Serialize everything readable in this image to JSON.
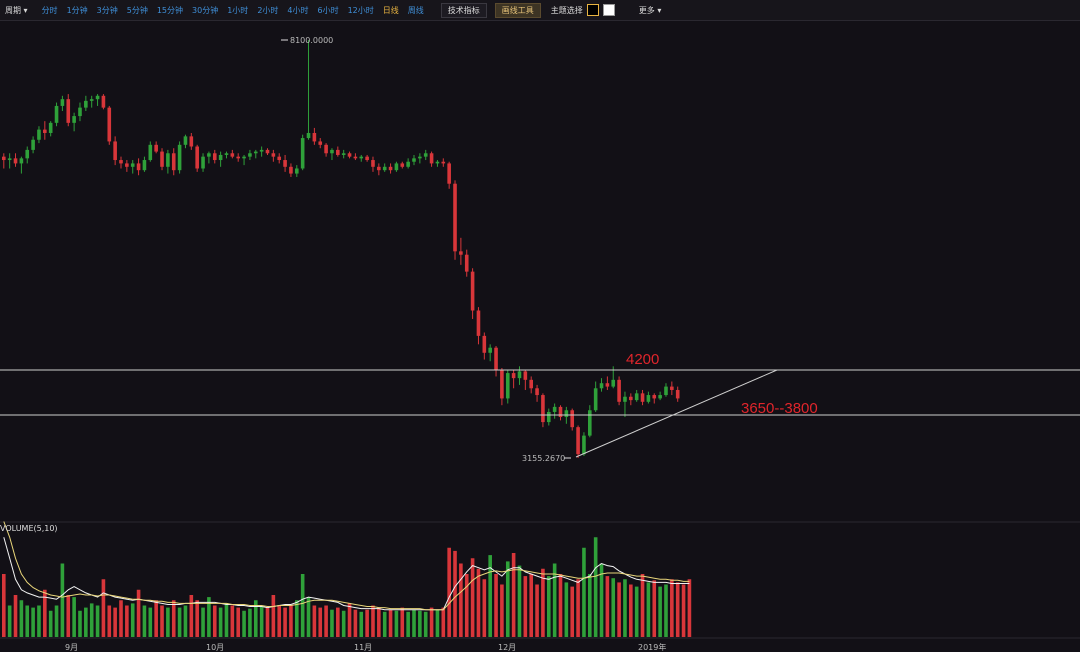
{
  "toolbar": {
    "period_label": "周期",
    "intervals": [
      "分时",
      "1分钟",
      "3分钟",
      "5分钟",
      "15分钟",
      "30分钟",
      "1小时",
      "2小时",
      "4小时",
      "6小时",
      "12小时",
      "日线",
      "周线"
    ],
    "active_interval": "日线",
    "tech_indicator": "技术指标",
    "draw_tool": "画线工具",
    "theme_label": "主题选择",
    "more_label": "更多"
  },
  "annotations": {
    "high_label": "8100.0000",
    "low_label": "3155.2670",
    "resistance_label": "4200",
    "support_label": "3650--3800"
  },
  "volume": {
    "title": "VOLUME(5,10)"
  },
  "colors": {
    "up": "#2fa13a",
    "down": "#d8363a",
    "ma5": "#f2f2f2",
    "ma10": "#e9d67a",
    "annotation": "#e0252b",
    "line": "#cfcfcf"
  },
  "chart_data": {
    "type": "candlestick",
    "x_tick_labels": [
      "9月",
      "10月",
      "11月",
      "12月",
      "2019年"
    ],
    "ylim": [
      3000,
      8300
    ],
    "ohlc": [
      [
        6720,
        6760,
        6580,
        6680
      ],
      [
        6680,
        6760,
        6580,
        6700
      ],
      [
        6700,
        6760,
        6600,
        6640
      ],
      [
        6640,
        6720,
        6520,
        6700
      ],
      [
        6700,
        6840,
        6640,
        6800
      ],
      [
        6800,
        6960,
        6760,
        6920
      ],
      [
        6920,
        7080,
        6880,
        7040
      ],
      [
        7040,
        7140,
        6920,
        7000
      ],
      [
        7000,
        7140,
        6960,
        7120
      ],
      [
        7120,
        7360,
        7080,
        7320
      ],
      [
        7320,
        7440,
        7260,
        7400
      ],
      [
        7400,
        7460,
        7080,
        7120
      ],
      [
        7120,
        7240,
        7020,
        7200
      ],
      [
        7200,
        7360,
        7140,
        7300
      ],
      [
        7300,
        7440,
        7260,
        7380
      ],
      [
        7380,
        7440,
        7300,
        7400
      ],
      [
        7400,
        7460,
        7320,
        7440
      ],
      [
        7440,
        7460,
        7280,
        7300
      ],
      [
        7300,
        7320,
        6860,
        6900
      ],
      [
        6900,
        6960,
        6620,
        6680
      ],
      [
        6680,
        6720,
        6580,
        6640
      ],
      [
        6640,
        6680,
        6540,
        6600
      ],
      [
        6600,
        6680,
        6520,
        6640
      ],
      [
        6640,
        6700,
        6500,
        6560
      ],
      [
        6560,
        6720,
        6540,
        6680
      ],
      [
        6680,
        6900,
        6660,
        6860
      ],
      [
        6860,
        6900,
        6760,
        6780
      ],
      [
        6780,
        6820,
        6560,
        6600
      ],
      [
        6600,
        6800,
        6520,
        6760
      ],
      [
        6760,
        6820,
        6500,
        6560
      ],
      [
        6560,
        6900,
        6520,
        6860
      ],
      [
        6860,
        6980,
        6820,
        6960
      ],
      [
        6960,
        7000,
        6800,
        6840
      ],
      [
        6840,
        6860,
        6540,
        6580
      ],
      [
        6580,
        6760,
        6540,
        6720
      ],
      [
        6720,
        6780,
        6640,
        6760
      ],
      [
        6760,
        6800,
        6640,
        6680
      ],
      [
        6680,
        6780,
        6600,
        6740
      ],
      [
        6740,
        6780,
        6700,
        6760
      ],
      [
        6760,
        6800,
        6700,
        6720
      ],
      [
        6720,
        6760,
        6660,
        6700
      ],
      [
        6700,
        6740,
        6620,
        6720
      ],
      [
        6720,
        6800,
        6680,
        6760
      ],
      [
        6760,
        6800,
        6700,
        6780
      ],
      [
        6780,
        6840,
        6720,
        6800
      ],
      [
        6800,
        6820,
        6740,
        6760
      ],
      [
        6760,
        6800,
        6660,
        6720
      ],
      [
        6720,
        6760,
        6640,
        6680
      ],
      [
        6680,
        6740,
        6540,
        6600
      ],
      [
        6600,
        6640,
        6480,
        6520
      ],
      [
        6520,
        6620,
        6480,
        6580
      ],
      [
        6580,
        6980,
        6560,
        6940
      ],
      [
        6940,
        8100,
        6920,
        7000
      ],
      [
        7000,
        7060,
        6860,
        6900
      ],
      [
        6900,
        6940,
        6820,
        6860
      ],
      [
        6860,
        6880,
        6720,
        6760
      ],
      [
        6760,
        6820,
        6680,
        6800
      ],
      [
        6800,
        6840,
        6720,
        6740
      ],
      [
        6740,
        6800,
        6700,
        6760
      ],
      [
        6760,
        6780,
        6700,
        6720
      ],
      [
        6720,
        6760,
        6680,
        6700
      ],
      [
        6700,
        6740,
        6660,
        6720
      ],
      [
        6720,
        6740,
        6660,
        6680
      ],
      [
        6680,
        6720,
        6540,
        6600
      ],
      [
        6600,
        6640,
        6500,
        6560
      ],
      [
        6560,
        6640,
        6540,
        6600
      ],
      [
        6600,
        6640,
        6520,
        6560
      ],
      [
        6560,
        6660,
        6540,
        6640
      ],
      [
        6640,
        6660,
        6580,
        6600
      ],
      [
        6600,
        6700,
        6580,
        6660
      ],
      [
        6660,
        6740,
        6620,
        6700
      ],
      [
        6700,
        6760,
        6640,
        6720
      ],
      [
        6720,
        6800,
        6680,
        6760
      ],
      [
        6760,
        6780,
        6600,
        6640
      ],
      [
        6640,
        6680,
        6600,
        6660
      ],
      [
        6660,
        6700,
        6600,
        6640
      ],
      [
        6640,
        6660,
        6340,
        6400
      ],
      [
        6400,
        6440,
        5500,
        5600
      ],
      [
        5600,
        5760,
        5440,
        5560
      ],
      [
        5560,
        5620,
        5300,
        5360
      ],
      [
        5360,
        5400,
        4800,
        4900
      ],
      [
        4900,
        4940,
        4500,
        4600
      ],
      [
        4600,
        4640,
        4320,
        4400
      ],
      [
        4400,
        4500,
        4300,
        4460
      ],
      [
        4460,
        4480,
        4120,
        4200
      ],
      [
        4200,
        4220,
        3780,
        3860
      ],
      [
        3860,
        4200,
        3800,
        4160
      ],
      [
        4160,
        4200,
        3980,
        4100
      ],
      [
        4100,
        4240,
        4020,
        4180
      ],
      [
        4180,
        4200,
        3960,
        4080
      ],
      [
        4080,
        4120,
        3920,
        3980
      ],
      [
        3980,
        4020,
        3820,
        3900
      ],
      [
        3900,
        3920,
        3520,
        3580
      ],
      [
        3580,
        3740,
        3540,
        3700
      ],
      [
        3700,
        3800,
        3620,
        3760
      ],
      [
        3760,
        3780,
        3600,
        3640
      ],
      [
        3640,
        3760,
        3560,
        3720
      ],
      [
        3720,
        3740,
        3480,
        3520
      ],
      [
        3520,
        3540,
        3155.267,
        3200
      ],
      [
        3200,
        3460,
        3180,
        3420
      ],
      [
        3420,
        3780,
        3400,
        3720
      ],
      [
        3720,
        4060,
        3700,
        3980
      ],
      [
        3980,
        4100,
        3940,
        4040
      ],
      [
        4040,
        4120,
        3960,
        4000
      ],
      [
        4000,
        4240,
        3980,
        4080
      ],
      [
        4080,
        4120,
        3780,
        3820
      ],
      [
        3820,
        3940,
        3640,
        3880
      ],
      [
        3880,
        3920,
        3780,
        3840
      ],
      [
        3840,
        3960,
        3820,
        3920
      ],
      [
        3920,
        3960,
        3780,
        3820
      ],
      [
        3820,
        3940,
        3800,
        3900
      ],
      [
        3900,
        3920,
        3800,
        3860
      ],
      [
        3860,
        3940,
        3840,
        3900
      ],
      [
        3900,
        4040,
        3880,
        4000
      ],
      [
        4000,
        4060,
        3900,
        3960
      ],
      [
        3960,
        4000,
        3820,
        3860
      ]
    ],
    "volume": [
      60,
      30,
      40,
      35,
      30,
      28,
      30,
      45,
      25,
      30,
      70,
      40,
      38,
      25,
      28,
      32,
      30,
      55,
      30,
      28,
      35,
      30,
      32,
      45,
      30,
      28,
      35,
      30,
      28,
      35,
      28,
      30,
      40,
      35,
      28,
      38,
      30,
      28,
      32,
      30,
      28,
      25,
      27,
      35,
      30,
      28,
      40,
      30,
      28,
      30,
      35,
      60,
      38,
      30,
      28,
      30,
      26,
      28,
      25,
      32,
      26,
      24,
      26,
      30,
      28,
      24,
      26,
      25,
      28,
      24,
      26,
      25,
      24,
      28,
      26,
      28,
      85,
      82,
      70,
      60,
      75,
      65,
      55,
      78,
      60,
      50,
      72,
      80,
      68,
      58,
      60,
      50,
      65,
      58,
      70,
      60,
      52,
      48,
      55,
      85,
      60,
      95,
      70,
      58,
      56,
      52,
      55,
      50,
      48,
      60,
      52,
      54,
      48,
      50,
      55,
      52,
      50,
      55
    ],
    "ma5": [
      95,
      75,
      55,
      45,
      42,
      40,
      38,
      38,
      37,
      36,
      40,
      45,
      48,
      45,
      42,
      40,
      38,
      42,
      40,
      38,
      37,
      36,
      35,
      36,
      35,
      34,
      33,
      32,
      31,
      31,
      31,
      32,
      32,
      33,
      33,
      33,
      33,
      32,
      31,
      31,
      30,
      30,
      29,
      29,
      29,
      28,
      29,
      30,
      31,
      31,
      33,
      36,
      38,
      37,
      36,
      35,
      34,
      33,
      30,
      29,
      28,
      27,
      27,
      27,
      27,
      26,
      26,
      26,
      26,
      26,
      26,
      26,
      26,
      26,
      26,
      26,
      38,
      48,
      55,
      62,
      68,
      66,
      64,
      66,
      62,
      58,
      64,
      66,
      66,
      62,
      60,
      58,
      56,
      55,
      57,
      58,
      56,
      54,
      52,
      56,
      58,
      66,
      70,
      68,
      67,
      63,
      60,
      57,
      55,
      54,
      53,
      52,
      52,
      52,
      51,
      51,
      51,
      51
    ],
    "ma10": [
      110,
      95,
      75,
      60,
      52,
      47,
      44,
      42,
      40,
      39,
      38,
      39,
      40,
      41,
      40,
      40,
      39,
      40,
      40,
      39,
      38,
      37,
      36,
      36,
      35,
      35,
      34,
      34,
      33,
      33,
      32,
      32,
      32,
      32,
      32,
      32,
      32,
      32,
      32,
      31,
      31,
      31,
      30,
      30,
      30,
      29,
      29,
      30,
      30,
      30,
      31,
      32,
      34,
      35,
      35,
      35,
      35,
      34,
      33,
      32,
      31,
      30,
      29,
      29,
      28,
      28,
      27,
      27,
      27,
      27,
      27,
      27,
      26,
      26,
      26,
      26,
      32,
      38,
      43,
      48,
      54,
      58,
      60,
      62,
      63,
      62,
      63,
      64,
      64,
      63,
      62,
      61,
      60,
      60,
      60,
      59,
      58,
      57,
      56,
      56,
      57,
      58,
      60,
      61,
      61,
      61,
      60,
      59,
      58,
      58,
      57,
      56,
      55,
      55,
      54,
      54,
      53,
      53
    ]
  }
}
